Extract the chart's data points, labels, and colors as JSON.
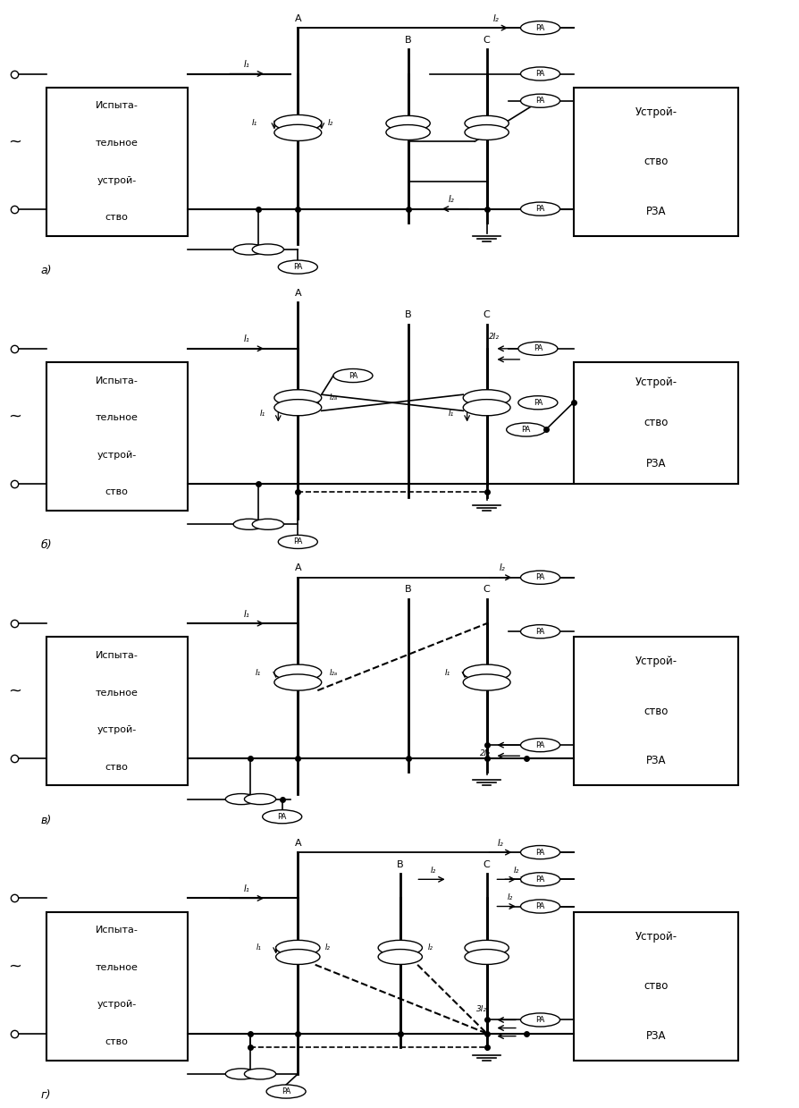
{
  "bg_color": "#ffffff",
  "figsize": [
    8.95,
    12.39
  ],
  "dpi": 100,
  "diagram_labels": [
    "а)",
    "б)",
    "в)",
    "г)"
  ],
  "left_box_lines": [
    "Испыта-",
    "тельное",
    "устрой-",
    "ство"
  ],
  "right_box_lines_1": [
    "Устрой-",
    "ство",
    "РЗА"
  ],
  "right_box_lines_2": [
    "Устрой-",
    "ство",
    "РЗА"
  ]
}
